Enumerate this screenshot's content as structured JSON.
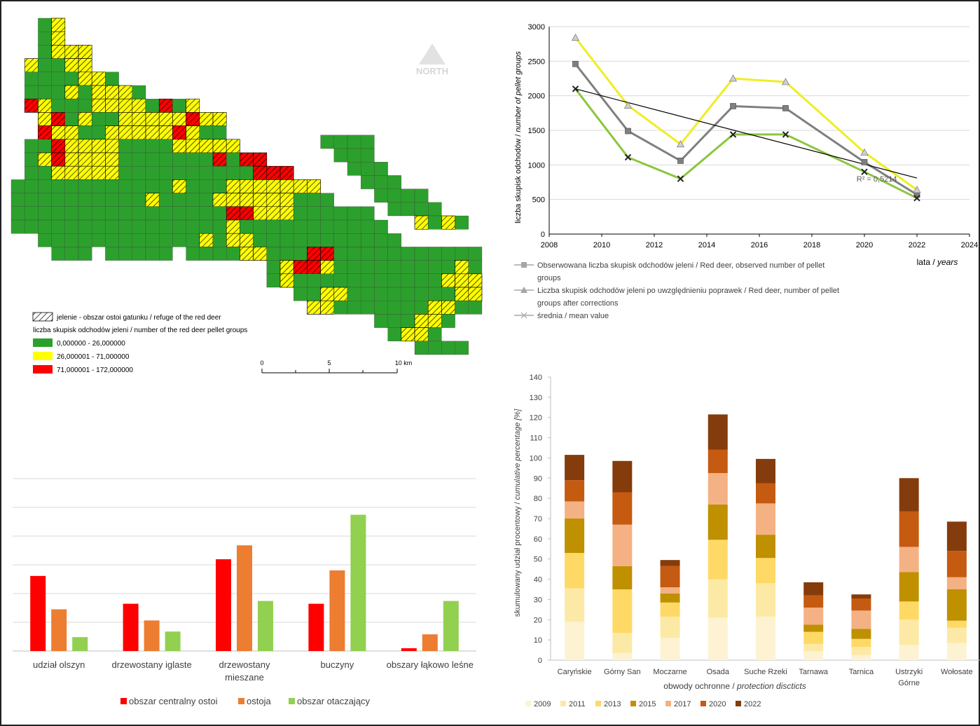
{
  "map": {
    "north_label": "NORTH",
    "legend": {
      "refuge_label": "jelenie - obszar ostoi gatunku / refuge of the red deer",
      "title": "liczba skupisk odchodów jeleni / number of the red deer pellet groups",
      "classes": [
        {
          "label": "0,000000 - 26,000000",
          "color": "#2ca02c"
        },
        {
          "label": "26,000001 - 71,000000",
          "color": "#ffff00"
        },
        {
          "label": "71,000001 - 172,000000",
          "color": "#ff0000"
        }
      ]
    },
    "scale": {
      "ticks": [
        "0",
        "5",
        "10 km"
      ]
    }
  },
  "chart_data": [
    {
      "type": "line",
      "ylabel_main": "liczba skupisk odchodów / ",
      "ylabel_italic": "number of pellet groups",
      "xlabel_main": "lata / ",
      "xlabel_italic": "years",
      "xlim": [
        2008,
        2024
      ],
      "ylim": [
        0,
        3000
      ],
      "xticks": [
        "2008",
        "2010",
        "2012",
        "2014",
        "2016",
        "2018",
        "2020",
        "2022",
        "2024"
      ],
      "yticks": [
        "0",
        "500",
        "1000",
        "1500",
        "2000",
        "2500",
        "3000"
      ],
      "x": [
        2009,
        2011,
        2013,
        2015,
        2017,
        2020,
        2022
      ],
      "series": [
        {
          "name": "Obserwowana liczba skupisk odchodów jeleni / Red deer, observed number of pellet groups",
          "values": [
            2460,
            1490,
            1060,
            1850,
            1820,
            1040,
            570
          ],
          "color": "#7f7f7f",
          "marker": "square"
        },
        {
          "name": "Liczba skupisk odchodów jeleni po uwzględnieniu poprawek / Red deer, number of pellet groups after corrections",
          "values": [
            2840,
            1860,
            1300,
            2250,
            2200,
            1180,
            640
          ],
          "color": "#eeee22",
          "marker": "triangle"
        },
        {
          "name": "średnia / mean value",
          "values": [
            2100,
            1110,
            800,
            1440,
            1440,
            900,
            520
          ],
          "color": "#8cc63f",
          "marker": "x"
        }
      ],
      "trendline": {
        "x": [
          2009,
          2022
        ],
        "y": [
          2100,
          810
        ]
      },
      "annotation": "R² = 0,5214",
      "legend_lines": [
        "Obserwowana liczba skupisk odchodów jeleni / Red deer, observed number of pellet",
        "groups",
        "Liczba skupisk odchodów jeleni po uwzględnieniu poprawek / Red deer, number of pellet",
        "groups after corrections",
        "średnia / mean value"
      ]
    },
    {
      "type": "bar",
      "categories": [
        "udział olszyn",
        "drzewostany iglaste",
        "drzewostany mieszane",
        "buczyny",
        "obszary łąkowo leśne"
      ],
      "category_lines": [
        [
          "udział olszyn"
        ],
        [
          "drzewostany iglaste"
        ],
        [
          "drzewostany",
          "mieszane"
        ],
        [
          "buczyny"
        ],
        [
          "obszary łąkowo leśne"
        ]
      ],
      "ylim": [
        0,
        62
      ],
      "series": [
        {
          "name": "obszar centralny ostoi",
          "values": [
            27,
            17,
            33,
            17,
            1
          ],
          "color": "#ff0000"
        },
        {
          "name": "ostoja",
          "values": [
            15,
            11,
            38,
            29,
            6
          ],
          "color": "#ed7d31"
        },
        {
          "name": "obszar otaczający",
          "values": [
            5,
            7,
            18,
            49,
            18
          ],
          "color": "#92d050"
        }
      ]
    },
    {
      "type": "bar",
      "stacked": true,
      "categories": [
        "Caryńskie",
        "Górny San",
        "Moczarne",
        "Osada",
        "Suche Rzeki",
        "Tarnawa",
        "Tarnica",
        "Ustrzyki Górne",
        "Wołosate"
      ],
      "category_lines": [
        [
          "Caryńskie"
        ],
        [
          "Górny San"
        ],
        [
          "Moczarne"
        ],
        [
          "Osada"
        ],
        [
          "Suche Rzeki"
        ],
        [
          "Tarnawa"
        ],
        [
          "Tarnica"
        ],
        [
          "Ustrzyki",
          "Górne"
        ],
        [
          "Wołosate"
        ]
      ],
      "ylabel_main": "skumulowany udział procentowy / ",
      "ylabel_italic": "cumulative percentage [%]",
      "xlabel_main": "obwody ochronne / ",
      "xlabel_italic": "protection discticts",
      "ylim": [
        0,
        140
      ],
      "yticks": [
        "0",
        "10",
        "20",
        "30",
        "40",
        "50",
        "60",
        "70",
        "80",
        "90",
        "100",
        "110",
        "120",
        "130",
        "140"
      ],
      "series": [
        {
          "name": "2009",
          "values": [
            19,
            3.5,
            11,
            21,
            21.5,
            4.5,
            2.5,
            7.5,
            8.5
          ],
          "color": "#fdf3d2"
        },
        {
          "name": "2011",
          "values": [
            16.5,
            10,
            10.5,
            19,
            16.5,
            3.5,
            4,
            12.5,
            7.5
          ],
          "color": "#fde9a6"
        },
        {
          "name": "2013",
          "values": [
            17.5,
            21.5,
            7,
            19.5,
            12.5,
            6,
            4,
            9,
            3.5
          ],
          "color": "#ffd966"
        },
        {
          "name": "2015",
          "values": [
            17,
            11.5,
            4.5,
            17.5,
            11.5,
            3.5,
            5,
            14.5,
            15.5
          ],
          "color": "#bf9000"
        },
        {
          "name": "2017",
          "values": [
            8.5,
            20.5,
            3,
            15.5,
            15.5,
            8.5,
            9,
            12.5,
            6
          ],
          "color": "#f4b183"
        },
        {
          "name": "2020",
          "values": [
            10.5,
            16,
            10.5,
            11.5,
            10,
            6,
            6,
            17.5,
            13
          ],
          "color": "#c55a11"
        },
        {
          "name": "2022",
          "values": [
            12.5,
            15.5,
            3,
            17.5,
            12,
            6.5,
            2,
            16.5,
            14.5
          ],
          "color": "#843c0c"
        }
      ]
    }
  ]
}
